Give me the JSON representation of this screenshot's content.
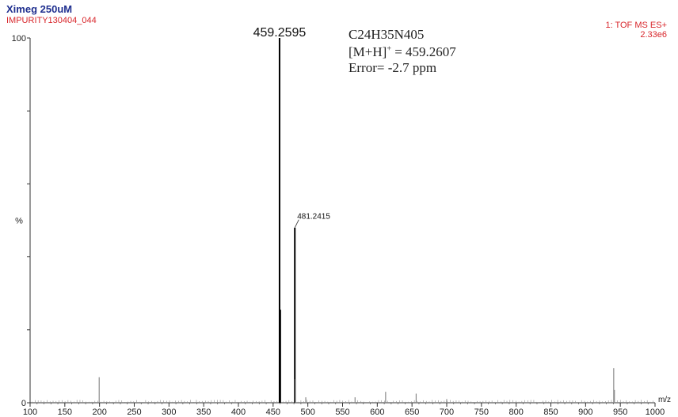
{
  "header": {
    "title": "Ximeg 250uM",
    "subtitle": "IMPURITY130404_044",
    "scan_mode": "1: TOF MS ES+",
    "intensity": "2.33e6"
  },
  "annotation": {
    "formula": "C24H35N405",
    "mh_prefix": "[M+H]",
    "mh_sup": "+",
    "mh_value": " = 459.2607",
    "error": "Error= -2.7 ppm"
  },
  "colors": {
    "title": "#1f2f8f",
    "subtitle": "#d8262b",
    "peak": "#000000",
    "minor_peak": "#8a8a8a"
  },
  "chart_data": {
    "type": "bar",
    "xlabel": "m/z",
    "ylabel": "%",
    "xlim": [
      100,
      1000
    ],
    "ylim": [
      0,
      100
    ],
    "x_ticks": [
      100,
      150,
      200,
      250,
      300,
      350,
      400,
      450,
      500,
      550,
      600,
      650,
      700,
      750,
      800,
      850,
      900,
      950,
      1000
    ],
    "y_ticks": [
      0,
      100
    ],
    "peaks": [
      {
        "mz": 459.2595,
        "intensity": 100,
        "label": "459.2595"
      },
      {
        "mz": 460.26,
        "intensity": 25.5
      },
      {
        "mz": 481.2415,
        "intensity": 48,
        "label": "481.2415"
      },
      {
        "mz": 482.25,
        "intensity": 6.5
      },
      {
        "mz": 199.5,
        "intensity": 7
      },
      {
        "mz": 940.5,
        "intensity": 9.5
      },
      {
        "mz": 941.5,
        "intensity": 3.5
      },
      {
        "mz": 497,
        "intensity": 1.5
      },
      {
        "mz": 568,
        "intensity": 1.5
      },
      {
        "mz": 612,
        "intensity": 3
      },
      {
        "mz": 656,
        "intensity": 2.5
      },
      {
        "mz": 700,
        "intensity": 1
      }
    ]
  }
}
